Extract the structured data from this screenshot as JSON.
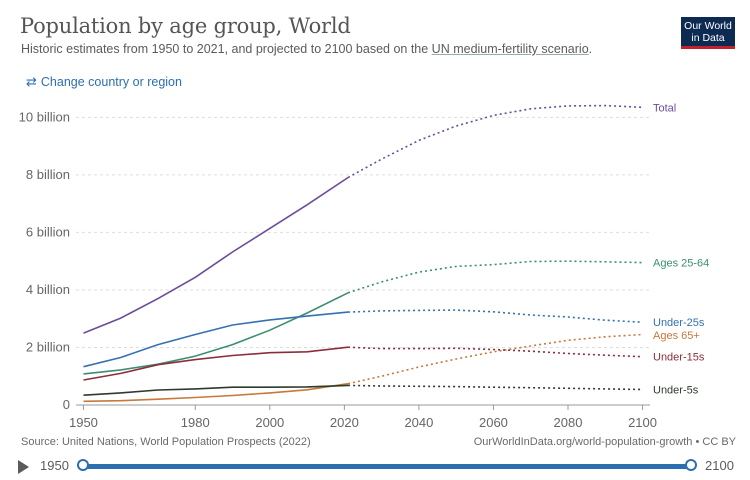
{
  "header": {
    "title": "Population by age group, World",
    "subtitle_prefix": "Historic estimates from 1950 to 2021, and projected to 2100 based on the ",
    "subtitle_link": "UN medium-fertility scenario",
    "subtitle_suffix": ".",
    "logo_line1": "Our World",
    "logo_line2": "in Data"
  },
  "controls": {
    "change_region_label": "Change country or region",
    "change_region_icon": "swap-arrows-icon"
  },
  "footer": {
    "source": "Source: United Nations, World Population Prospects (2022)",
    "url": "OurWorldInData.org/world-population-growth • CC BY"
  },
  "timeline": {
    "start_label": "1950",
    "end_label": "2100"
  },
  "chart_data": {
    "type": "line",
    "title": "Population by age group, World",
    "xlim": [
      1948,
      2102
    ],
    "ylim": [
      0,
      10500000000
    ],
    "x_ticks": [
      1950,
      1980,
      2000,
      2020,
      2040,
      2060,
      2080,
      2100
    ],
    "y_ticks": [
      {
        "value": 0,
        "label": "0"
      },
      {
        "value": 2000000000,
        "label": "2 billion"
      },
      {
        "value": 4000000000,
        "label": "4 billion"
      },
      {
        "value": 6000000000,
        "label": "6 billion"
      },
      {
        "value": 8000000000,
        "label": "8 billion"
      },
      {
        "value": 10000000000,
        "label": "10 billion"
      }
    ],
    "projection_start": 2021,
    "series": [
      {
        "name": "Total",
        "color": "#6b4c9a",
        "label_value": 10350000000,
        "points": [
          [
            1950,
            2500000000
          ],
          [
            1960,
            3020000000
          ],
          [
            1970,
            3700000000
          ],
          [
            1980,
            4440000000
          ],
          [
            1990,
            5320000000
          ],
          [
            2000,
            6140000000
          ],
          [
            2010,
            6960000000
          ],
          [
            2021,
            7910000000
          ],
          [
            2030,
            8550000000
          ],
          [
            2040,
            9200000000
          ],
          [
            2050,
            9700000000
          ],
          [
            2060,
            10070000000
          ],
          [
            2070,
            10300000000
          ],
          [
            2080,
            10400000000
          ],
          [
            2090,
            10410000000
          ],
          [
            2100,
            10350000000
          ]
        ]
      },
      {
        "name": "Ages 25-64",
        "color": "#3b8e72",
        "label_value": 4950000000,
        "points": [
          [
            1950,
            1080000000
          ],
          [
            1960,
            1220000000
          ],
          [
            1970,
            1420000000
          ],
          [
            1980,
            1700000000
          ],
          [
            1990,
            2100000000
          ],
          [
            2000,
            2600000000
          ],
          [
            2010,
            3200000000
          ],
          [
            2021,
            3900000000
          ],
          [
            2030,
            4280000000
          ],
          [
            2040,
            4620000000
          ],
          [
            2050,
            4820000000
          ],
          [
            2060,
            4880000000
          ],
          [
            2070,
            4990000000
          ],
          [
            2080,
            5000000000
          ],
          [
            2090,
            4980000000
          ],
          [
            2100,
            4950000000
          ]
        ]
      },
      {
        "name": "Under-25s",
        "color": "#3471b0",
        "label_value": 2880000000,
        "points": [
          [
            1950,
            1330000000
          ],
          [
            1960,
            1650000000
          ],
          [
            1970,
            2100000000
          ],
          [
            1980,
            2450000000
          ],
          [
            1990,
            2780000000
          ],
          [
            2000,
            2960000000
          ],
          [
            2010,
            3090000000
          ],
          [
            2021,
            3230000000
          ],
          [
            2030,
            3270000000
          ],
          [
            2040,
            3290000000
          ],
          [
            2050,
            3300000000
          ],
          [
            2060,
            3240000000
          ],
          [
            2070,
            3130000000
          ],
          [
            2080,
            3060000000
          ],
          [
            2090,
            2950000000
          ],
          [
            2100,
            2880000000
          ]
        ]
      },
      {
        "name": "Ages 65+",
        "color": "#c8783b",
        "label_value": 2450000000,
        "points": [
          [
            1950,
            130000000
          ],
          [
            1960,
            150000000
          ],
          [
            1970,
            200000000
          ],
          [
            1980,
            260000000
          ],
          [
            1990,
            330000000
          ],
          [
            2000,
            420000000
          ],
          [
            2010,
            530000000
          ],
          [
            2021,
            740000000
          ],
          [
            2030,
            1000000000
          ],
          [
            2040,
            1320000000
          ],
          [
            2050,
            1600000000
          ],
          [
            2060,
            1850000000
          ],
          [
            2070,
            2050000000
          ],
          [
            2080,
            2250000000
          ],
          [
            2090,
            2370000000
          ],
          [
            2100,
            2450000000
          ]
        ]
      },
      {
        "name": "Under-15s",
        "color": "#8c2e3a",
        "label_value": 1680000000,
        "points": [
          [
            1950,
            870000000
          ],
          [
            1960,
            1100000000
          ],
          [
            1970,
            1400000000
          ],
          [
            1980,
            1580000000
          ],
          [
            1990,
            1720000000
          ],
          [
            2000,
            1820000000
          ],
          [
            2010,
            1850000000
          ],
          [
            2021,
            2010000000
          ],
          [
            2030,
            1960000000
          ],
          [
            2040,
            1960000000
          ],
          [
            2050,
            1970000000
          ],
          [
            2060,
            1930000000
          ],
          [
            2070,
            1870000000
          ],
          [
            2080,
            1790000000
          ],
          [
            2090,
            1730000000
          ],
          [
            2100,
            1680000000
          ]
        ]
      },
      {
        "name": "Under-5s",
        "color": "#2d3b2d",
        "label_value": 540000000,
        "points": [
          [
            1950,
            340000000
          ],
          [
            1960,
            420000000
          ],
          [
            1970,
            520000000
          ],
          [
            1980,
            560000000
          ],
          [
            1990,
            620000000
          ],
          [
            2000,
            620000000
          ],
          [
            2010,
            630000000
          ],
          [
            2021,
            680000000
          ],
          [
            2030,
            660000000
          ],
          [
            2040,
            650000000
          ],
          [
            2050,
            640000000
          ],
          [
            2060,
            620000000
          ],
          [
            2070,
            600000000
          ],
          [
            2080,
            580000000
          ],
          [
            2090,
            560000000
          ],
          [
            2100,
            540000000
          ]
        ]
      }
    ]
  }
}
